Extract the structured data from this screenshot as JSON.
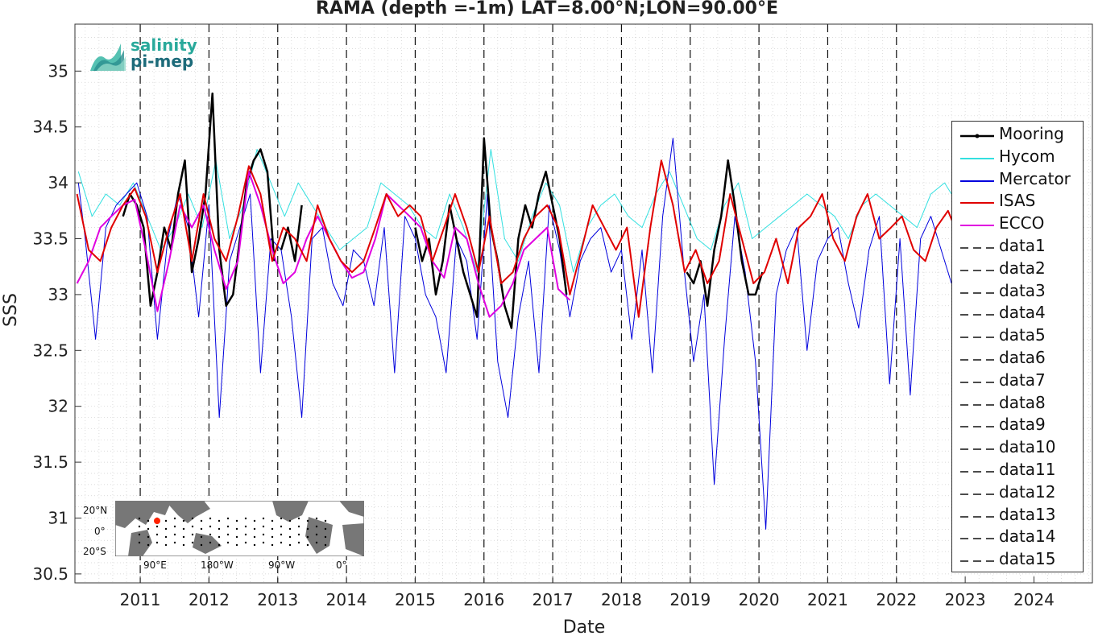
{
  "chart_data": {
    "type": "line",
    "title": "RAMA (depth =-1m) LAT=8.00°N;LON=90.00°E",
    "xlabel": "Date",
    "ylabel": "SSS",
    "xlim": [
      2010.05,
      2024.85
    ],
    "ylim": [
      30.42,
      35.42
    ],
    "xticks": [
      2011,
      2012,
      2013,
      2014,
      2015,
      2016,
      2017,
      2018,
      2019,
      2020,
      2021,
      2022,
      2023,
      2024
    ],
    "yticks": [
      30.5,
      31,
      31.5,
      32,
      32.5,
      33,
      33.5,
      34,
      34.5,
      35
    ],
    "grid": true,
    "legend_placement": "right",
    "vertical_dashed_lines": [
      2011,
      2012,
      2013,
      2014,
      2015,
      2016,
      2017,
      2018,
      2019,
      2020,
      2021,
      2022
    ],
    "series": [
      {
        "name": "Mooring",
        "color": "#000000",
        "segments": [
          {
            "x": [
              2010.75,
              2010.85,
              2010.95,
              2011.05,
              2011.15,
              2011.25,
              2011.35,
              2011.45,
              2011.55,
              2011.65,
              2011.75,
              2011.85,
              2011.95,
              2012.05,
              2012.15,
              2012.25,
              2012.35,
              2012.45,
              2012.55,
              2012.65,
              2012.75,
              2012.85,
              2012.95
            ],
            "y": [
              33.7,
              33.9,
              33.8,
              33.6,
              32.9,
              33.2,
              33.6,
              33.4,
              33.9,
              34.2,
              33.2,
              33.5,
              33.9,
              34.8,
              33.4,
              32.9,
              33.0,
              33.5,
              34.0,
              34.2,
              34.3,
              34.1,
              33.3
            ]
          },
          {
            "x": [
              2013.05,
              2013.15,
              2013.25,
              2013.35
            ],
            "y": [
              33.4,
              33.6,
              33.3,
              33.8
            ]
          },
          {
            "x": [
              2015.0,
              2015.1,
              2015.2,
              2015.3,
              2015.4,
              2015.5,
              2015.6,
              2015.7,
              2015.8,
              2015.9,
              2016.0,
              2016.1,
              2016.2,
              2016.3,
              2016.4,
              2016.5,
              2016.6,
              2016.7,
              2016.8,
              2016.9,
              2017.0,
              2017.1,
              2017.2
            ],
            "y": [
              33.6,
              33.3,
              33.5,
              33.0,
              33.3,
              33.8,
              33.5,
              33.2,
              33.0,
              32.8,
              34.4,
              33.6,
              33.3,
              32.9,
              32.7,
              33.5,
              33.8,
              33.6,
              33.9,
              34.1,
              33.8,
              33.5,
              33.0
            ]
          },
          {
            "x": [
              2018.95,
              2019.05,
              2019.15,
              2019.25,
              2019.35,
              2019.45,
              2019.55,
              2019.65,
              2019.75,
              2019.85,
              2019.95,
              2020.05
            ],
            "y": [
              33.2,
              33.1,
              33.3,
              32.9,
              33.4,
              33.7,
              34.2,
              33.8,
              33.3,
              33.0,
              33.0,
              33.2
            ]
          }
        ]
      },
      {
        "name": "Hycom",
        "color": "#33e0e0",
        "x": [
          2010.1,
          2010.3,
          2010.5,
          2010.7,
          2010.9,
          2011.1,
          2011.3,
          2011.5,
          2011.7,
          2011.9,
          2012.1,
          2012.3,
          2012.5,
          2012.7,
          2012.9,
          2013.1,
          2013.3,
          2013.5,
          2013.7,
          2013.9,
          2014.1,
          2014.3,
          2014.5,
          2014.7,
          2014.9,
          2015.1,
          2015.3,
          2015.5,
          2015.7,
          2015.9,
          2016.1,
          2016.3,
          2016.5,
          2016.7,
          2016.9,
          2017.1,
          2017.3,
          2017.5,
          2017.7,
          2017.9,
          2018.1,
          2018.3,
          2018.5,
          2018.7,
          2018.9,
          2019.1,
          2019.3,
          2019.5,
          2019.7,
          2019.9,
          2020.1,
          2020.3,
          2020.5,
          2020.7,
          2020.9,
          2021.1,
          2021.3,
          2021.5,
          2021.7,
          2021.9,
          2022.1,
          2022.3,
          2022.5,
          2022.7,
          2022.8
        ],
        "y": [
          34.1,
          33.7,
          33.9,
          33.8,
          34.0,
          33.7,
          33.4,
          33.6,
          33.9,
          33.6,
          34.2,
          33.5,
          33.8,
          34.3,
          34.0,
          33.7,
          34.0,
          33.8,
          33.6,
          33.4,
          33.5,
          33.6,
          34.0,
          33.9,
          33.8,
          33.6,
          33.5,
          33.9,
          33.6,
          33.2,
          34.3,
          33.5,
          33.3,
          33.7,
          34.0,
          33.8,
          33.2,
          33.6,
          33.8,
          33.9,
          33.7,
          33.6,
          33.9,
          34.1,
          33.8,
          33.5,
          33.4,
          33.8,
          34.0,
          33.5,
          33.6,
          33.7,
          33.8,
          33.9,
          33.8,
          33.7,
          33.5,
          33.8,
          33.9,
          33.8,
          33.7,
          33.6,
          33.9,
          34.0,
          33.9
        ]
      },
      {
        "name": "Mercator",
        "color": "#0000dd",
        "x": [
          2010.1,
          2010.2,
          2010.35,
          2010.5,
          2010.65,
          2010.8,
          2010.95,
          2011.1,
          2011.25,
          2011.4,
          2011.55,
          2011.7,
          2011.85,
          2012.0,
          2012.15,
          2012.3,
          2012.45,
          2012.6,
          2012.75,
          2012.9,
          2013.05,
          2013.2,
          2013.35,
          2013.5,
          2013.65,
          2013.8,
          2013.95,
          2014.1,
          2014.25,
          2014.4,
          2014.55,
          2014.7,
          2014.85,
          2015.0,
          2015.15,
          2015.3,
          2015.45,
          2015.6,
          2015.75,
          2015.9,
          2016.05,
          2016.2,
          2016.35,
          2016.5,
          2016.65,
          2016.8,
          2016.95,
          2017.1,
          2017.25,
          2017.4,
          2017.55,
          2017.7,
          2017.85,
          2018.0,
          2018.15,
          2018.3,
          2018.45,
          2018.6,
          2018.75,
          2018.9,
          2019.05,
          2019.2,
          2019.35,
          2019.5,
          2019.65,
          2019.8,
          2019.95,
          2020.1,
          2020.25,
          2020.4,
          2020.55,
          2020.7,
          2020.85,
          2021.0,
          2021.15,
          2021.3,
          2021.45,
          2021.6,
          2021.75,
          2021.9,
          2022.05,
          2022.2,
          2022.35,
          2022.5,
          2022.65,
          2022.8
        ],
        "y": [
          34.0,
          33.5,
          32.6,
          33.6,
          33.8,
          33.9,
          34.0,
          33.7,
          32.6,
          33.5,
          33.9,
          33.6,
          32.8,
          33.8,
          31.9,
          33.3,
          33.6,
          33.9,
          32.3,
          33.5,
          33.4,
          32.8,
          31.9,
          33.5,
          33.6,
          33.1,
          32.9,
          33.4,
          33.3,
          32.9,
          33.6,
          32.3,
          33.7,
          33.5,
          33.0,
          32.8,
          32.3,
          33.5,
          33.3,
          32.6,
          33.9,
          32.4,
          31.9,
          32.8,
          33.3,
          32.3,
          33.8,
          33.4,
          32.8,
          33.3,
          33.5,
          33.6,
          33.2,
          33.4,
          32.6,
          33.4,
          32.3,
          33.7,
          34.4,
          33.3,
          32.4,
          33.0,
          31.3,
          32.6,
          33.7,
          33.2,
          32.4,
          30.9,
          33.0,
          33.4,
          33.6,
          32.5,
          33.3,
          33.5,
          33.6,
          33.1,
          32.7,
          33.4,
          33.7,
          32.2,
          33.5,
          32.1,
          33.5,
          33.7,
          33.4,
          33.1
        ]
      },
      {
        "name": "ISAS",
        "color": "#e00000",
        "x": [
          2010.08,
          2010.25,
          2010.42,
          2010.58,
          2010.75,
          2010.92,
          2011.08,
          2011.25,
          2011.42,
          2011.58,
          2011.75,
          2011.92,
          2012.08,
          2012.25,
          2012.42,
          2012.58,
          2012.75,
          2012.92,
          2013.08,
          2013.25,
          2013.42,
          2013.58,
          2013.75,
          2013.92,
          2014.08,
          2014.25,
          2014.42,
          2014.58,
          2014.75,
          2014.92,
          2015.08,
          2015.25,
          2015.42,
          2015.58,
          2015.75,
          2015.92,
          2016.08,
          2016.25,
          2016.42,
          2016.58,
          2016.75,
          2016.92,
          2017.08,
          2017.25,
          2017.42,
          2017.58,
          2017.75,
          2017.92,
          2018.08,
          2018.25,
          2018.42,
          2018.58,
          2018.75,
          2018.92,
          2019.08,
          2019.25,
          2019.42,
          2019.58,
          2019.75,
          2019.92,
          2020.08,
          2020.25,
          2020.42,
          2020.58,
          2020.75,
          2020.92,
          2021.08,
          2021.25,
          2021.42,
          2021.58,
          2021.75,
          2021.92,
          2022.08,
          2022.25,
          2022.42,
          2022.58,
          2022.75,
          2022.85
        ],
        "y": [
          33.9,
          33.4,
          33.3,
          33.6,
          33.8,
          33.95,
          33.7,
          33.2,
          33.6,
          33.9,
          33.3,
          33.9,
          33.5,
          33.3,
          33.7,
          34.15,
          33.9,
          33.3,
          33.6,
          33.5,
          33.3,
          33.8,
          33.5,
          33.3,
          33.2,
          33.3,
          33.6,
          33.9,
          33.7,
          33.8,
          33.7,
          33.3,
          33.6,
          33.9,
          33.6,
          33.2,
          33.7,
          33.1,
          33.2,
          33.5,
          33.7,
          33.8,
          33.6,
          33.0,
          33.4,
          33.8,
          33.6,
          33.4,
          33.6,
          32.8,
          33.6,
          34.2,
          33.8,
          33.2,
          33.4,
          33.1,
          33.3,
          33.9,
          33.5,
          33.1,
          33.2,
          33.5,
          33.1,
          33.6,
          33.7,
          33.9,
          33.5,
          33.3,
          33.7,
          33.9,
          33.5,
          33.6,
          33.7,
          33.4,
          33.3,
          33.6,
          33.75,
          33.6
        ]
      },
      {
        "name": "ECCO",
        "color": "#e000e0",
        "x": [
          2010.08,
          2010.25,
          2010.42,
          2010.58,
          2010.75,
          2010.92,
          2011.08,
          2011.25,
          2011.42,
          2011.58,
          2011.75,
          2011.92,
          2012.08,
          2012.25,
          2012.42,
          2012.58,
          2012.75,
          2012.92,
          2013.08,
          2013.25,
          2013.42,
          2013.58,
          2013.75,
          2013.92,
          2014.08,
          2014.25,
          2014.42,
          2014.58,
          2014.75,
          2014.92,
          2015.08,
          2015.25,
          2015.42,
          2015.58,
          2015.75,
          2015.92,
          2016.08,
          2016.25,
          2016.42,
          2016.58,
          2016.75,
          2016.92,
          2017.08,
          2017.25
        ],
        "y": [
          33.1,
          33.3,
          33.6,
          33.7,
          33.8,
          33.85,
          33.4,
          32.85,
          33.3,
          33.8,
          33.6,
          33.8,
          33.4,
          33.05,
          33.3,
          34.1,
          33.8,
          33.4,
          33.1,
          33.2,
          33.5,
          33.7,
          33.5,
          33.3,
          33.15,
          33.2,
          33.5,
          33.9,
          33.8,
          33.7,
          33.6,
          33.3,
          33.15,
          33.6,
          33.5,
          33.1,
          32.8,
          32.9,
          33.1,
          33.4,
          33.5,
          33.6,
          33.05,
          32.95
        ]
      }
    ],
    "legend": [
      "Mooring",
      "Hycom",
      "Mercator",
      "ISAS",
      "ECCO",
      "data1",
      "data2",
      "data3",
      "data4",
      "data5",
      "data6",
      "data7",
      "data8",
      "data9",
      "data10",
      "data11",
      "data12",
      "data13",
      "data14",
      "data15"
    ]
  },
  "logo": {
    "line1": "salinity",
    "line2": "pi-mep"
  },
  "inset_map": {
    "lat_labels": [
      "20°N",
      "0°",
      "20°S"
    ],
    "lon_labels": [
      "90°E",
      "180°W",
      "90°W",
      "0°"
    ],
    "marker_color": "#ff2200"
  }
}
